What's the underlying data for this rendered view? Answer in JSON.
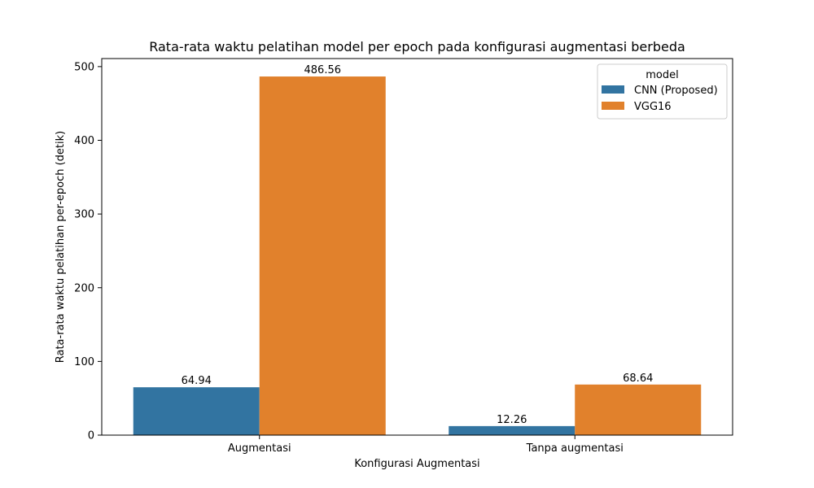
{
  "chart_data": {
    "type": "bar",
    "title": "Rata-rata waktu pelatihan model per epoch pada konfigurasi augmentasi berbeda",
    "xlabel": "Konfigurasi Augmentasi",
    "ylabel": "Rata-rata waktu pelatihan per-epoch (detik)",
    "categories": [
      "Augmentasi",
      "Tanpa augmentasi"
    ],
    "series": [
      {
        "name": "CNN (Proposed)",
        "color": "#3274a1",
        "values": [
          64.94,
          12.26
        ],
        "labels": [
          "64.94",
          "12.26"
        ]
      },
      {
        "name": "VGG16",
        "color": "#e1812c",
        "values": [
          486.56,
          68.64
        ],
        "labels": [
          "486.56",
          "68.64"
        ]
      }
    ],
    "ylim": [
      0,
      510.9
    ],
    "yticks": [
      0,
      100,
      200,
      300,
      400,
      500
    ],
    "ytick_labels": [
      "0",
      "100",
      "200",
      "300",
      "400",
      "500"
    ],
    "legend": {
      "title": "model",
      "placement": "top-right"
    },
    "grid": false
  }
}
